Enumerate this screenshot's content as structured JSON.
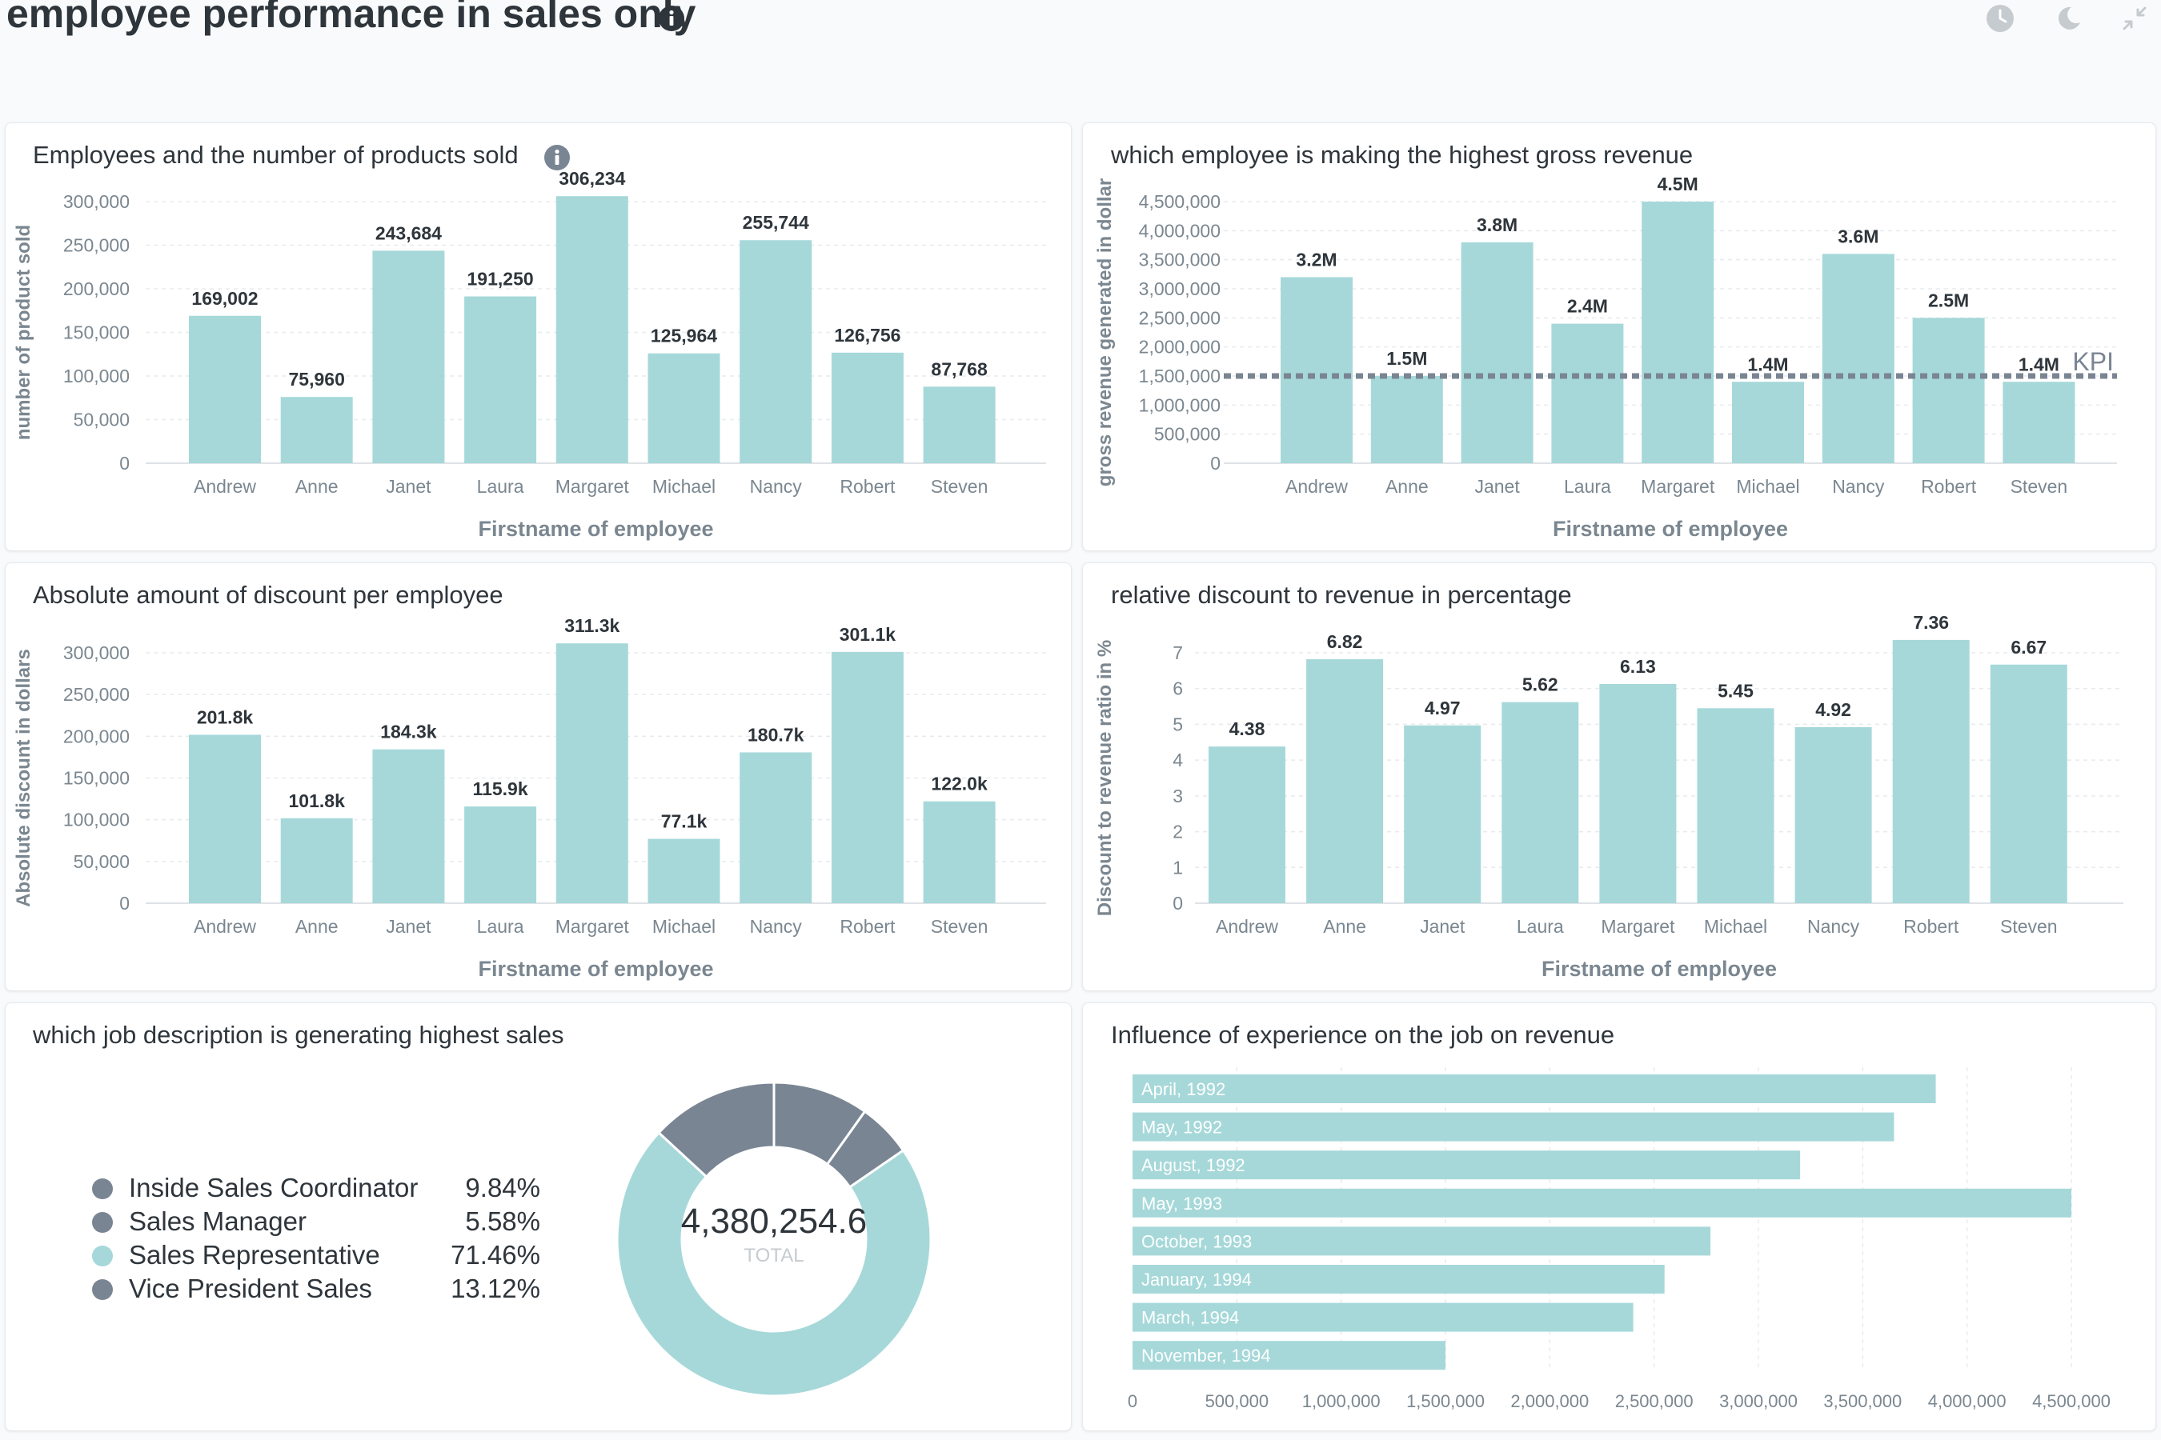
{
  "header": {
    "title": "employee performance in sales only"
  },
  "colors": {
    "bar": "#a6d8d9",
    "dark": "#7a8593",
    "axis_text": "#7b8790",
    "label_text": "#2e353b"
  },
  "chart_data": [
    {
      "id": "products_sold",
      "type": "bar",
      "title": "Employees and the number of products sold",
      "xlabel": "Firstname of employee",
      "ylabel": "number of product sold",
      "ylim": [
        0,
        300000
      ],
      "yticks": [
        0,
        50000,
        100000,
        150000,
        200000,
        250000,
        300000
      ],
      "ytick_labels": [
        "0",
        "50,000",
        "100,000",
        "150,000",
        "200,000",
        "250,000",
        "300,000"
      ],
      "categories": [
        "Andrew",
        "Anne",
        "Janet",
        "Laura",
        "Margaret",
        "Michael",
        "Nancy",
        "Robert",
        "Steven"
      ],
      "values": [
        169002,
        75960,
        243684,
        191250,
        306234,
        125964,
        255744,
        126756,
        87768
      ],
      "labels": [
        "169,002",
        "75,960",
        "243,684",
        "191,250",
        "306,234",
        "125,964",
        "255,744",
        "126,756",
        "87,768"
      ],
      "grid": true
    },
    {
      "id": "gross_revenue",
      "type": "bar",
      "title": "which employee is making the highest gross revenue",
      "xlabel": "Firstname of employee",
      "ylabel": "gross revenue generated in dollar",
      "ylim": [
        0,
        4500000
      ],
      "yticks": [
        0,
        500000,
        1000000,
        1500000,
        2000000,
        2500000,
        3000000,
        3500000,
        4000000,
        4500000
      ],
      "ytick_labels": [
        "0",
        "500,000",
        "1,000,000",
        "1,500,000",
        "2,000,000",
        "2,500,000",
        "3,000,000",
        "3,500,000",
        "4,000,000",
        "4,500,000"
      ],
      "categories": [
        "Andrew",
        "Anne",
        "Janet",
        "Laura",
        "Margaret",
        "Michael",
        "Nancy",
        "Robert",
        "Steven"
      ],
      "values": [
        3200000,
        1500000,
        3800000,
        2400000,
        4500000,
        1400000,
        3600000,
        2500000,
        1400000
      ],
      "labels": [
        "3.2M",
        "1.5M",
        "3.8M",
        "2.4M",
        "4.5M",
        "1.4M",
        "3.6M",
        "2.5M",
        "1.4M"
      ],
      "goal": {
        "value": 1500000,
        "label": "KPI"
      },
      "grid": true
    },
    {
      "id": "absolute_discount",
      "type": "bar",
      "title": "Absolute amount of discount per employee",
      "xlabel": "Firstname of employee",
      "ylabel": "Absolute discount in dollars",
      "ylim": [
        0,
        300000
      ],
      "yticks": [
        0,
        50000,
        100000,
        150000,
        200000,
        250000,
        300000
      ],
      "ytick_labels": [
        "0",
        "50,000",
        "100,000",
        "150,000",
        "200,000",
        "250,000",
        "300,000"
      ],
      "categories": [
        "Andrew",
        "Anne",
        "Janet",
        "Laura",
        "Margaret",
        "Michael",
        "Nancy",
        "Robert",
        "Steven"
      ],
      "values": [
        201800,
        101800,
        184300,
        115900,
        311300,
        77100,
        180700,
        301100,
        122000
      ],
      "labels": [
        "201.8k",
        "101.8k",
        "184.3k",
        "115.9k",
        "311.3k",
        "77.1k",
        "180.7k",
        "301.1k",
        "122.0k"
      ],
      "grid": true
    },
    {
      "id": "relative_discount",
      "type": "bar",
      "title": "relative discount to revenue in percentage",
      "xlabel": "Firstname of employee",
      "ylabel": "Discount to revenue ratio in %",
      "ylim": [
        0,
        7
      ],
      "yticks": [
        0,
        1,
        2,
        3,
        4,
        5,
        6,
        7
      ],
      "ytick_labels": [
        "0",
        "1",
        "2",
        "3",
        "4",
        "5",
        "6",
        "7"
      ],
      "categories": [
        "Andrew",
        "Anne",
        "Janet",
        "Laura",
        "Margaret",
        "Michael",
        "Nancy",
        "Robert",
        "Steven"
      ],
      "values": [
        4.38,
        6.82,
        4.97,
        5.62,
        6.13,
        5.45,
        4.92,
        7.36,
        6.67
      ],
      "labels": [
        "4.38",
        "6.82",
        "4.97",
        "5.62",
        "6.13",
        "5.45",
        "4.92",
        "7.36",
        "6.67"
      ],
      "grid": true
    },
    {
      "id": "job_sales",
      "type": "pie",
      "title": "which job description is generating highest sales",
      "total": "4,380,254.6",
      "total_label": "TOTAL",
      "slices": [
        {
          "label": "Inside Sales Coordinator",
          "pct": 9.84,
          "pct_label": "9.84%",
          "color": "#7a8593"
        },
        {
          "label": "Sales Manager",
          "pct": 5.58,
          "pct_label": "5.58%",
          "color": "#7a8593"
        },
        {
          "label": "Sales Representative",
          "pct": 71.46,
          "pct_label": "71.46%",
          "color": "#a6d8d9"
        },
        {
          "label": "Vice President Sales",
          "pct": 13.12,
          "pct_label": "13.12%",
          "color": "#7a8593"
        }
      ]
    },
    {
      "id": "experience_revenue",
      "type": "bar",
      "orientation": "horizontal",
      "title": "Influence of experience on the job on revenue",
      "xlim": [
        0,
        4500000
      ],
      "xticks": [
        0,
        500000,
        1000000,
        1500000,
        2000000,
        2500000,
        3000000,
        3500000,
        4000000,
        4500000
      ],
      "xtick_labels": [
        "0",
        "500,000",
        "1,000,000",
        "1,500,000",
        "2,000,000",
        "2,500,000",
        "3,000,000",
        "3,500,000",
        "4,000,000",
        "4,500,000"
      ],
      "categories": [
        "April, 1992",
        "May, 1992",
        "August, 1992",
        "May, 1993",
        "October, 1993",
        "January, 1994",
        "March, 1994",
        "November, 1994"
      ],
      "values": [
        3850000,
        3650000,
        3200000,
        4500000,
        2770000,
        2550000,
        2400000,
        1500000
      ]
    }
  ]
}
